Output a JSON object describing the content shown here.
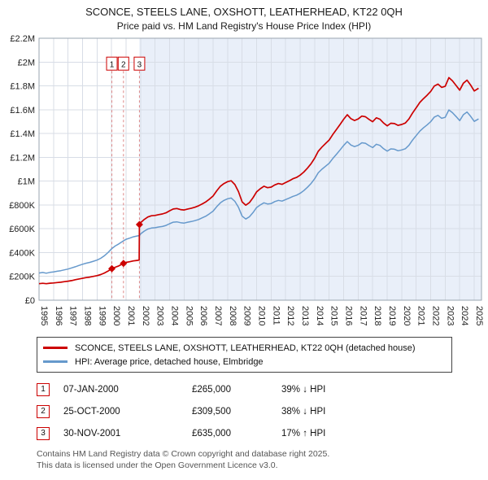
{
  "title": "SCONCE, STEELS LANE, OXSHOTT, LEATHERHEAD, KT22 0QH",
  "subtitle": "Price paid vs. HM Land Registry's House Price Index (HPI)",
  "legend": {
    "items": [
      {
        "label": "SCONCE, STEELS LANE, OXSHOTT, LEATHERHEAD, KT22 0QH (detached house)",
        "color": "#cc0000"
      },
      {
        "label": "HPI: Average price, detached house, Elmbridge",
        "color": "#6699cc"
      }
    ]
  },
  "transactions": [
    {
      "num": "1",
      "date": "07-JAN-2000",
      "price": "£265,000",
      "hpi": "39% ↓ HPI"
    },
    {
      "num": "2",
      "date": "25-OCT-2000",
      "price": "£309,500",
      "hpi": "38% ↓ HPI"
    },
    {
      "num": "3",
      "date": "30-NOV-2001",
      "price": "£635,000",
      "hpi": "17% ↑ HPI"
    }
  ],
  "footer": {
    "line1": "Contains HM Land Registry data © Crown copyright and database right 2025.",
    "line2": "This data is licensed under the Open Government Licence v3.0."
  },
  "chart_data": {
    "type": "line",
    "title": "SCONCE, STEELS LANE, OXSHOTT, LEATHERHEAD, KT22 0QH",
    "subtitle": "Price paid vs. HM Land Registry's House Price Index (HPI)",
    "xlim": [
      1995,
      2025.5
    ],
    "ylim": [
      0,
      2200000
    ],
    "grid": true,
    "legend_position": "bottom",
    "shade_from": 2001.92,
    "marker_box_y": 1980000,
    "xticks": [
      1995,
      1996,
      1997,
      1998,
      1999,
      2000,
      2001,
      2002,
      2003,
      2004,
      2005,
      2006,
      2007,
      2008,
      2009,
      2010,
      2011,
      2012,
      2013,
      2014,
      2015,
      2016,
      2017,
      2018,
      2019,
      2020,
      2021,
      2022,
      2023,
      2024,
      2025
    ],
    "yticks": [
      {
        "label": "£0",
        "value": 0
      },
      {
        "label": "£200K",
        "value": 200000
      },
      {
        "label": "£400K",
        "value": 400000
      },
      {
        "label": "£600K",
        "value": 600000
      },
      {
        "label": "£800K",
        "value": 800000
      },
      {
        "label": "£1M",
        "value": 1000000
      },
      {
        "label": "£1.2M",
        "value": 1200000
      },
      {
        "label": "£1.4M",
        "value": 1400000
      },
      {
        "label": "£1.6M",
        "value": 1600000
      },
      {
        "label": "£1.8M",
        "value": 1800000
      },
      {
        "label": "£2M",
        "value": 2000000
      },
      {
        "label": "£2.2M",
        "value": 2200000
      }
    ],
    "colors": {
      "property": "#cc0000",
      "hpi": "#6699cc",
      "grid": "#d8dde6",
      "shade": "#e9eff9",
      "dashed": "#dd8888",
      "border": "#9aa4b0"
    },
    "markers": [
      {
        "label": "1",
        "x": 2000.02,
        "y": 265000
      },
      {
        "label": "2",
        "x": 2000.82,
        "y": 309500
      },
      {
        "label": "3",
        "x": 2001.92,
        "y": 635000
      }
    ],
    "series": [
      {
        "id": "property-price-line",
        "name": "SCONCE, STEELS LANE, OXSHOTT, LEATHERHEAD, KT22 0QH (detached house)",
        "color": "#cc0000",
        "width": 1.7,
        "points": [
          [
            1995.0,
            139000
          ],
          [
            1995.25,
            142000
          ],
          [
            1995.5,
            139000
          ],
          [
            1995.75,
            143000
          ],
          [
            1996.0,
            145000
          ],
          [
            1996.25,
            148000
          ],
          [
            1996.5,
            151000
          ],
          [
            1996.75,
            156000
          ],
          [
            1997.0,
            160000
          ],
          [
            1997.25,
            165000
          ],
          [
            1997.5,
            172000
          ],
          [
            1997.75,
            178000
          ],
          [
            1998.0,
            184000
          ],
          [
            1998.25,
            190000
          ],
          [
            1998.5,
            194000
          ],
          [
            1998.75,
            200000
          ],
          [
            1999.0,
            206000
          ],
          [
            1999.25,
            215000
          ],
          [
            1999.5,
            228000
          ],
          [
            1999.75,
            244000
          ],
          [
            2000.02,
            265000
          ],
          [
            2000.25,
            277000
          ],
          [
            2000.5,
            288000
          ],
          [
            2000.82,
            309500
          ],
          [
            2001.0,
            318000
          ],
          [
            2001.25,
            323000
          ],
          [
            2001.5,
            330000
          ],
          [
            2001.75,
            334000
          ],
          [
            2001.9,
            337000
          ],
          [
            2001.92,
            635000
          ],
          [
            2002.0,
            651000
          ],
          [
            2002.25,
            678000
          ],
          [
            2002.5,
            699000
          ],
          [
            2002.75,
            709000
          ],
          [
            2003.0,
            712000
          ],
          [
            2003.25,
            719000
          ],
          [
            2003.5,
            724000
          ],
          [
            2003.75,
            734000
          ],
          [
            2004.0,
            751000
          ],
          [
            2004.25,
            766000
          ],
          [
            2004.5,
            770000
          ],
          [
            2004.75,
            761000
          ],
          [
            2005.0,
            758000
          ],
          [
            2005.25,
            766000
          ],
          [
            2005.5,
            773000
          ],
          [
            2005.75,
            781000
          ],
          [
            2006.0,
            793000
          ],
          [
            2006.25,
            809000
          ],
          [
            2006.5,
            826000
          ],
          [
            2006.75,
            849000
          ],
          [
            2007.0,
            875000
          ],
          [
            2007.25,
            919000
          ],
          [
            2007.5,
            957000
          ],
          [
            2007.75,
            980000
          ],
          [
            2008.0,
            996000
          ],
          [
            2008.25,
            1003000
          ],
          [
            2008.5,
            971000
          ],
          [
            2008.75,
            912000
          ],
          [
            2009.0,
            826000
          ],
          [
            2009.25,
            798000
          ],
          [
            2009.5,
            819000
          ],
          [
            2009.75,
            861000
          ],
          [
            2010.0,
            910000
          ],
          [
            2010.25,
            936000
          ],
          [
            2010.5,
            957000
          ],
          [
            2010.75,
            945000
          ],
          [
            2011.0,
            950000
          ],
          [
            2011.25,
            968000
          ],
          [
            2011.5,
            980000
          ],
          [
            2011.75,
            973000
          ],
          [
            2012.0,
            988000
          ],
          [
            2012.25,
            1003000
          ],
          [
            2012.5,
            1020000
          ],
          [
            2012.75,
            1031000
          ],
          [
            2013.0,
            1050000
          ],
          [
            2013.25,
            1076000
          ],
          [
            2013.5,
            1109000
          ],
          [
            2013.75,
            1146000
          ],
          [
            2014.0,
            1193000
          ],
          [
            2014.25,
            1251000
          ],
          [
            2014.5,
            1286000
          ],
          [
            2014.75,
            1316000
          ],
          [
            2015.0,
            1345000
          ],
          [
            2015.25,
            1392000
          ],
          [
            2015.5,
            1433000
          ],
          [
            2015.75,
            1476000
          ],
          [
            2016.0,
            1520000
          ],
          [
            2016.25,
            1558000
          ],
          [
            2016.5,
            1524000
          ],
          [
            2016.75,
            1509000
          ],
          [
            2017.0,
            1522000
          ],
          [
            2017.25,
            1546000
          ],
          [
            2017.5,
            1541000
          ],
          [
            2017.75,
            1518000
          ],
          [
            2018.0,
            1499000
          ],
          [
            2018.25,
            1532000
          ],
          [
            2018.5,
            1520000
          ],
          [
            2018.75,
            1488000
          ],
          [
            2019.0,
            1464000
          ],
          [
            2019.25,
            1486000
          ],
          [
            2019.5,
            1483000
          ],
          [
            2019.75,
            1468000
          ],
          [
            2020.0,
            1476000
          ],
          [
            2020.25,
            1488000
          ],
          [
            2020.5,
            1522000
          ],
          [
            2020.75,
            1573000
          ],
          [
            2021.0,
            1616000
          ],
          [
            2021.25,
            1661000
          ],
          [
            2021.5,
            1693000
          ],
          [
            2021.75,
            1721000
          ],
          [
            2022.0,
            1754000
          ],
          [
            2022.25,
            1799000
          ],
          [
            2022.5,
            1815000
          ],
          [
            2022.75,
            1787000
          ],
          [
            2023.0,
            1796000
          ],
          [
            2023.25,
            1869000
          ],
          [
            2023.5,
            1842000
          ],
          [
            2023.75,
            1803000
          ],
          [
            2024.0,
            1764000
          ],
          [
            2024.25,
            1822000
          ],
          [
            2024.5,
            1848000
          ],
          [
            2024.75,
            1807000
          ],
          [
            2025.0,
            1757000
          ],
          [
            2025.3,
            1780000
          ]
        ]
      },
      {
        "id": "hpi-line",
        "name": "HPI: Average price, detached house, Elmbridge",
        "color": "#6699cc",
        "width": 1.5,
        "points": [
          [
            1995.0,
            228000
          ],
          [
            1995.25,
            233000
          ],
          [
            1995.5,
            227000
          ],
          [
            1995.75,
            234000
          ],
          [
            1996.0,
            238000
          ],
          [
            1996.25,
            243000
          ],
          [
            1996.5,
            248000
          ],
          [
            1996.75,
            255000
          ],
          [
            1997.0,
            262000
          ],
          [
            1997.25,
            271000
          ],
          [
            1997.5,
            281000
          ],
          [
            1997.75,
            292000
          ],
          [
            1998.0,
            302000
          ],
          [
            1998.25,
            311000
          ],
          [
            1998.5,
            318000
          ],
          [
            1998.75,
            327000
          ],
          [
            1999.0,
            337000
          ],
          [
            1999.25,
            352000
          ],
          [
            1999.5,
            373000
          ],
          [
            1999.75,
            400000
          ],
          [
            2000.0,
            432000
          ],
          [
            2000.25,
            455000
          ],
          [
            2000.5,
            473000
          ],
          [
            2000.82,
            499000
          ],
          [
            2001.0,
            512000
          ],
          [
            2001.25,
            521000
          ],
          [
            2001.5,
            532000
          ],
          [
            2001.75,
            539000
          ],
          [
            2001.92,
            543000
          ],
          [
            2002.0,
            557000
          ],
          [
            2002.25,
            580000
          ],
          [
            2002.5,
            598000
          ],
          [
            2002.75,
            606000
          ],
          [
            2003.0,
            609000
          ],
          [
            2003.25,
            615000
          ],
          [
            2003.5,
            619000
          ],
          [
            2003.75,
            628000
          ],
          [
            2004.0,
            642000
          ],
          [
            2004.25,
            655000
          ],
          [
            2004.5,
            658000
          ],
          [
            2004.75,
            651000
          ],
          [
            2005.0,
            648000
          ],
          [
            2005.25,
            655000
          ],
          [
            2005.5,
            661000
          ],
          [
            2005.75,
            668000
          ],
          [
            2006.0,
            678000
          ],
          [
            2006.25,
            692000
          ],
          [
            2006.5,
            706000
          ],
          [
            2006.75,
            726000
          ],
          [
            2007.0,
            748000
          ],
          [
            2007.25,
            786000
          ],
          [
            2007.5,
            818000
          ],
          [
            2007.75,
            838000
          ],
          [
            2008.0,
            852000
          ],
          [
            2008.25,
            858000
          ],
          [
            2008.5,
            830000
          ],
          [
            2008.75,
            780000
          ],
          [
            2009.0,
            706000
          ],
          [
            2009.25,
            682000
          ],
          [
            2009.5,
            700000
          ],
          [
            2009.75,
            736000
          ],
          [
            2010.0,
            778000
          ],
          [
            2010.25,
            800000
          ],
          [
            2010.5,
            818000
          ],
          [
            2010.75,
            808000
          ],
          [
            2011.0,
            812000
          ],
          [
            2011.25,
            828000
          ],
          [
            2011.5,
            838000
          ],
          [
            2011.75,
            832000
          ],
          [
            2012.0,
            845000
          ],
          [
            2012.25,
            858000
          ],
          [
            2012.5,
            872000
          ],
          [
            2012.75,
            882000
          ],
          [
            2013.0,
            898000
          ],
          [
            2013.25,
            920000
          ],
          [
            2013.5,
            948000
          ],
          [
            2013.75,
            980000
          ],
          [
            2014.0,
            1020000
          ],
          [
            2014.25,
            1070000
          ],
          [
            2014.5,
            1100000
          ],
          [
            2014.75,
            1125000
          ],
          [
            2015.0,
            1150000
          ],
          [
            2015.25,
            1190000
          ],
          [
            2015.5,
            1225000
          ],
          [
            2015.75,
            1262000
          ],
          [
            2016.0,
            1300000
          ],
          [
            2016.25,
            1332000
          ],
          [
            2016.5,
            1303000
          ],
          [
            2016.75,
            1290000
          ],
          [
            2017.0,
            1301000
          ],
          [
            2017.25,
            1322000
          ],
          [
            2017.5,
            1318000
          ],
          [
            2017.75,
            1298000
          ],
          [
            2018.0,
            1282000
          ],
          [
            2018.25,
            1310000
          ],
          [
            2018.5,
            1300000
          ],
          [
            2018.75,
            1272000
          ],
          [
            2019.0,
            1252000
          ],
          [
            2019.25,
            1271000
          ],
          [
            2019.5,
            1268000
          ],
          [
            2019.75,
            1255000
          ],
          [
            2020.0,
            1262000
          ],
          [
            2020.25,
            1272000
          ],
          [
            2020.5,
            1301000
          ],
          [
            2020.75,
            1345000
          ],
          [
            2021.0,
            1382000
          ],
          [
            2021.25,
            1420000
          ],
          [
            2021.5,
            1448000
          ],
          [
            2021.75,
            1472000
          ],
          [
            2022.0,
            1500000
          ],
          [
            2022.25,
            1538000
          ],
          [
            2022.5,
            1552000
          ],
          [
            2022.75,
            1528000
          ],
          [
            2023.0,
            1536000
          ],
          [
            2023.25,
            1598000
          ],
          [
            2023.5,
            1575000
          ],
          [
            2023.75,
            1542000
          ],
          [
            2024.0,
            1508000
          ],
          [
            2024.25,
            1558000
          ],
          [
            2024.5,
            1580000
          ],
          [
            2024.75,
            1545000
          ],
          [
            2025.0,
            1502000
          ],
          [
            2025.3,
            1522000
          ]
        ]
      }
    ]
  }
}
